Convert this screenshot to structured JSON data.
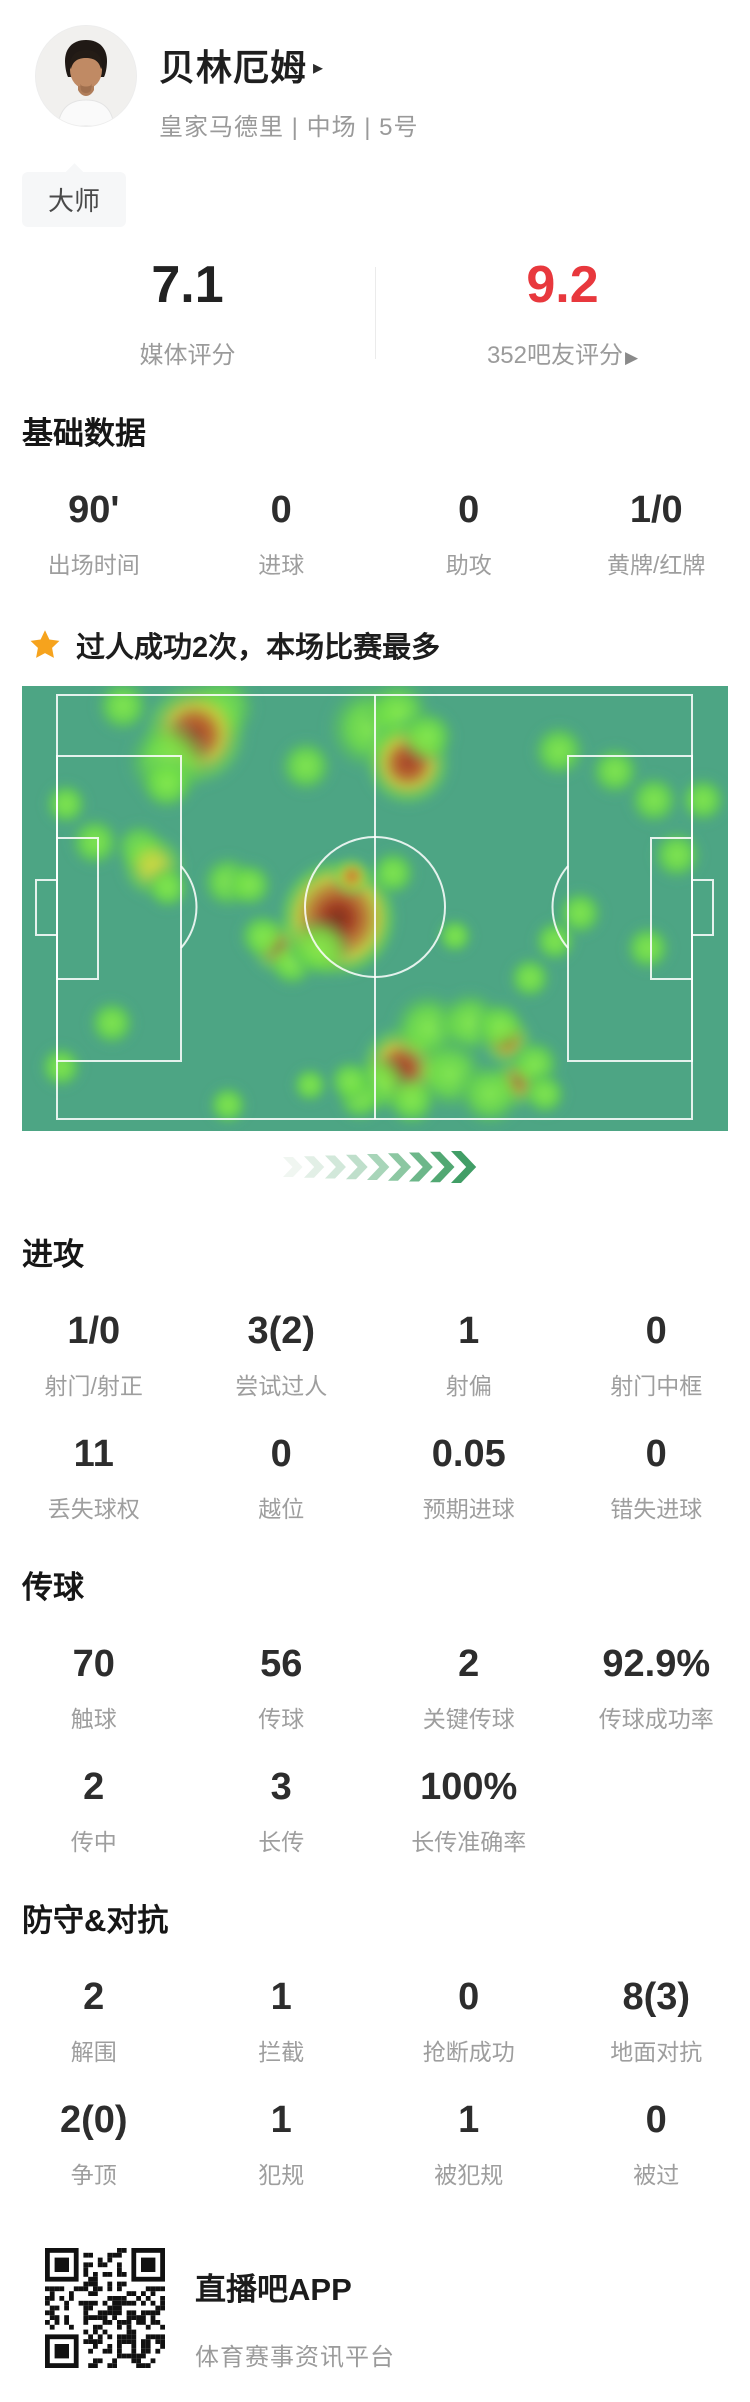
{
  "header": {
    "name": "贝林厄姆",
    "name_arrow": "▸",
    "team_line": "皇家马德里 | 中场 | 5号",
    "badge": "大师"
  },
  "ratings": {
    "media": {
      "value": "7.1",
      "label": "媒体评分"
    },
    "fans": {
      "value": "9.2",
      "label": "352吧友评分",
      "arrow": "▶",
      "color": "#e8383d"
    }
  },
  "highlight": {
    "star_color": "#f6a31d",
    "text": "过人成功2次，本场比赛最多"
  },
  "sections": [
    {
      "title": "基础数据",
      "rows": [
        [
          {
            "v": "90'",
            "l": "出场时间"
          },
          {
            "v": "0",
            "l": "进球"
          },
          {
            "v": "0",
            "l": "助攻"
          },
          {
            "v": "1/0",
            "l": "黄牌/红牌"
          }
        ]
      ]
    },
    {
      "title": "进攻",
      "rows": [
        [
          {
            "v": "1/0",
            "l": "射门/射正"
          },
          {
            "v": "3(2)",
            "l": "尝试过人"
          },
          {
            "v": "1",
            "l": "射偏"
          },
          {
            "v": "0",
            "l": "射门中框"
          }
        ],
        [
          {
            "v": "11",
            "l": "丢失球权"
          },
          {
            "v": "0",
            "l": "越位"
          },
          {
            "v": "0.05",
            "l": "预期进球"
          },
          {
            "v": "0",
            "l": "错失进球"
          }
        ]
      ]
    },
    {
      "title": "传球",
      "rows": [
        [
          {
            "v": "70",
            "l": "触球"
          },
          {
            "v": "56",
            "l": "传球"
          },
          {
            "v": "2",
            "l": "关键传球"
          },
          {
            "v": "92.9%",
            "l": "传球成功率"
          }
        ],
        [
          {
            "v": "2",
            "l": "传中"
          },
          {
            "v": "3",
            "l": "长传"
          },
          {
            "v": "100%",
            "l": "长传准确率"
          },
          null
        ]
      ]
    },
    {
      "title": "防守&对抗",
      "rows": [
        [
          {
            "v": "2",
            "l": "解围"
          },
          {
            "v": "1",
            "l": "拦截"
          },
          {
            "v": "0",
            "l": "抢断成功"
          },
          {
            "v": "8(3)",
            "l": "地面对抗"
          }
        ],
        [
          {
            "v": "2(0)",
            "l": "争顶"
          },
          {
            "v": "1",
            "l": "犯规"
          },
          {
            "v": "1",
            "l": "被犯规"
          },
          {
            "v": "0",
            "l": "被过"
          }
        ]
      ]
    },
    {
      "title": "footer"
    }
  ],
  "heatmap": {
    "pitch_color": "#4da584",
    "line_color": "rgba(255,255,255,0.85)",
    "blobs": [
      [
        "g",
        123,
        20,
        16
      ],
      [
        "g",
        222,
        22,
        20
      ],
      [
        "red",
        195,
        48,
        30
      ],
      [
        "g",
        168,
        75,
        24
      ],
      [
        "g",
        167,
        98,
        16
      ],
      [
        "g",
        306,
        80,
        16
      ],
      [
        "g",
        66,
        118,
        13
      ],
      [
        "g",
        95,
        156,
        15
      ],
      [
        "g",
        140,
        162,
        15
      ],
      [
        "y",
        153,
        180,
        19
      ],
      [
        "g",
        168,
        202,
        13
      ],
      [
        "g",
        228,
        196,
        16
      ],
      [
        "g",
        250,
        199,
        14
      ],
      [
        "o",
        278,
        261,
        17
      ],
      [
        "g",
        262,
        250,
        14
      ],
      [
        "g",
        292,
        278,
        14
      ],
      [
        "dr",
        338,
        232,
        33
      ],
      [
        "g",
        320,
        262,
        18
      ],
      [
        "o",
        352,
        190,
        12
      ],
      [
        "g",
        112,
        337,
        14
      ],
      [
        "g",
        61,
        381,
        13
      ],
      [
        "g",
        310,
        399,
        11
      ],
      [
        "g",
        228,
        419,
        12
      ],
      [
        "g",
        370,
        42,
        25
      ],
      [
        "g",
        398,
        26,
        19
      ],
      [
        "red",
        408,
        77,
        25
      ],
      [
        "g",
        428,
        50,
        16
      ],
      [
        "g",
        393,
        187,
        14
      ],
      [
        "g",
        455,
        250,
        11
      ],
      [
        "g",
        559,
        65,
        16
      ],
      [
        "g",
        615,
        85,
        15
      ],
      [
        "g",
        654,
        114,
        15
      ],
      [
        "g",
        703,
        114,
        14
      ],
      [
        "g",
        677,
        169,
        15
      ],
      [
        "g",
        580,
        227,
        14
      ],
      [
        "g",
        555,
        255,
        13
      ],
      [
        "g",
        648,
        262,
        14
      ],
      [
        "g",
        530,
        292,
        13
      ],
      [
        "red",
        403,
        382,
        25
      ],
      [
        "g",
        380,
        398,
        17
      ],
      [
        "g",
        360,
        412,
        14
      ],
      [
        "g",
        428,
        342,
        21
      ],
      [
        "g",
        470,
        337,
        19
      ],
      [
        "o",
        507,
        355,
        16
      ],
      [
        "o",
        518,
        396,
        16
      ],
      [
        "g",
        450,
        388,
        21
      ],
      [
        "g",
        490,
        408,
        19
      ],
      [
        "g",
        535,
        378,
        15
      ],
      [
        "g",
        545,
        408,
        13
      ],
      [
        "g",
        500,
        340,
        15
      ],
      [
        "g",
        412,
        415,
        15
      ],
      [
        "g",
        350,
        395,
        13
      ]
    ],
    "chevron_colors": [
      "#f0f6f1",
      "#e2efe6",
      "#d2e8da",
      "#bfdfcb",
      "#a8d5b9",
      "#8cc7a2",
      "#6db78a",
      "#52a873",
      "#419e66"
    ]
  },
  "footer": {
    "app": "直播吧APP",
    "tagline": "体育赛事资讯平台"
  }
}
